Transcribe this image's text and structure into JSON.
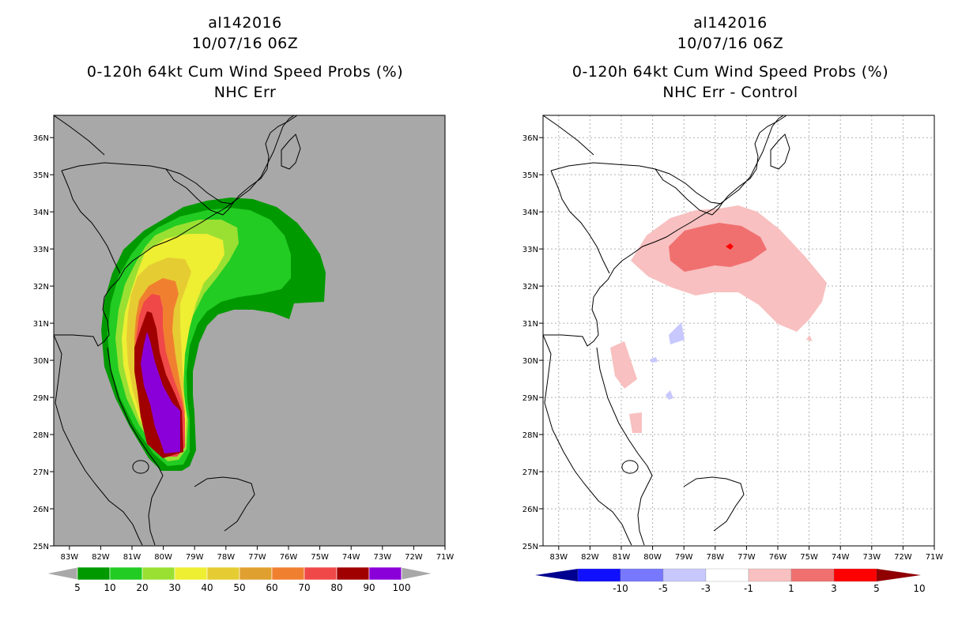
{
  "chart_data": [
    {
      "type": "filled-contour-map",
      "title_lines": [
        "al142016",
        "10/07/16 06Z",
        "0-120h 64kt Cum Wind Speed Probs (%)",
        "NHC Err"
      ],
      "lon_ticks": [
        "83W",
        "82W",
        "81W",
        "80W",
        "79W",
        "78W",
        "77W",
        "76W",
        "75W",
        "74W",
        "73W",
        "72W",
        "71W"
      ],
      "lat_ticks": [
        "36N",
        "35N",
        "34N",
        "33N",
        "32N",
        "31N",
        "30N",
        "29N",
        "28N",
        "27N",
        "26N",
        "25N"
      ],
      "xlim": [
        -83.5,
        -71
      ],
      "ylim": [
        25,
        36.6
      ],
      "colorbar": {
        "labels": [
          "5",
          "10",
          "20",
          "30",
          "40",
          "50",
          "60",
          "70",
          "80",
          "90",
          "100"
        ],
        "colors": [
          "#009900",
          "#22cc22",
          "#99e033",
          "#eeee33",
          "#e6cc33",
          "#e0a030",
          "#f08030",
          "#f04848",
          "#a00000",
          "#8a00d8"
        ],
        "background": "#a8a8a8"
      }
    },
    {
      "type": "filled-contour-map",
      "title_lines": [
        "al142016",
        "10/07/16 06Z",
        "0-120h 64kt Cum Wind Speed Probs (%)",
        "NHC Err - Control"
      ],
      "lon_ticks": [
        "83W",
        "82W",
        "81W",
        "80W",
        "79W",
        "78W",
        "77W",
        "76W",
        "75W",
        "74W",
        "73W",
        "72W",
        "71W"
      ],
      "lat_ticks": [
        "36N",
        "35N",
        "34N",
        "33N",
        "32N",
        "31N",
        "30N",
        "29N",
        "28N",
        "27N",
        "26N",
        "25N"
      ],
      "xlim": [
        -83.5,
        -71
      ],
      "ylim": [
        25,
        36.6
      ],
      "colorbar": {
        "labels": [
          "-10",
          "-5",
          "-3",
          "-1",
          "1",
          "3",
          "5",
          "10"
        ],
        "colors": [
          "#000090",
          "#1010ff",
          "#7878ff",
          "#c8c8ff",
          "#ffffff",
          "#f8c0c0",
          "#f07070",
          "#ff0000",
          "#900000"
        ]
      }
    }
  ]
}
